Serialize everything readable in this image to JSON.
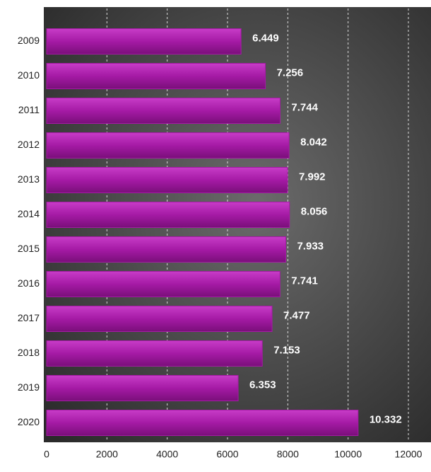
{
  "chart_data": {
    "type": "bar",
    "orientation": "horizontal",
    "categories": [
      "2009",
      "2010",
      "2011",
      "2012",
      "2013",
      "2014",
      "2015",
      "2016",
      "2017",
      "2018",
      "2019",
      "2020"
    ],
    "values": [
      6449,
      7256,
      7744,
      8042,
      7992,
      8056,
      7933,
      7741,
      7477,
      7153,
      6353,
      10332
    ],
    "value_labels": [
      "6.449",
      "7.256",
      "7.744",
      "8.042",
      "7.992",
      "8.056",
      "7.933",
      "7.741",
      "7.477",
      "7.153",
      "6.353",
      "10.332"
    ],
    "color": "#a51aa5",
    "xlim": [
      0,
      12000
    ],
    "xticks": [
      0,
      2000,
      4000,
      6000,
      8000,
      10000,
      12000
    ],
    "grid": true
  }
}
